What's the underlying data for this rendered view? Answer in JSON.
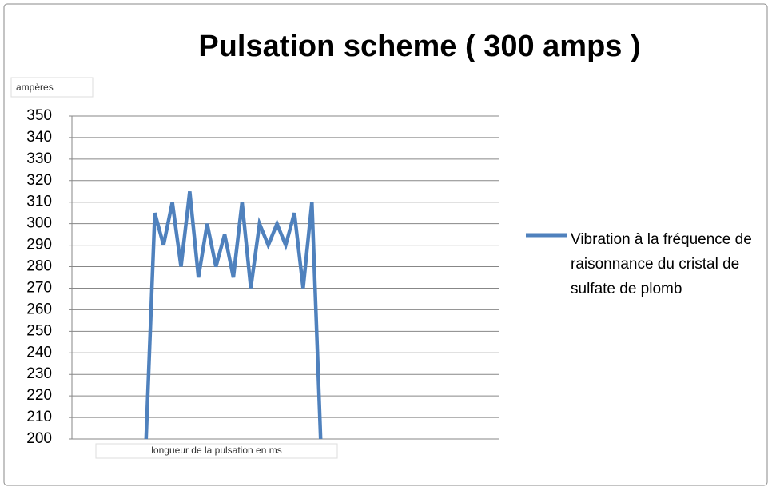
{
  "chart_data": {
    "type": "line",
    "title": "Pulsation scheme ( 300 amps )",
    "y_label": "ampères",
    "x_label": "longueur de la pulsation en ms",
    "categories": [
      null,
      null,
      null,
      null,
      null,
      null,
      null,
      null,
      null,
      null,
      null,
      null,
      null,
      null,
      null,
      null,
      null,
      null,
      null,
      null,
      null,
      null,
      null,
      null,
      null,
      null,
      null,
      null,
      null,
      null,
      null,
      null,
      null,
      null,
      null,
      null,
      null,
      null,
      null,
      null,
      null,
      null,
      null,
      null,
      null,
      null,
      null,
      null,
      null
    ],
    "series": [
      {
        "name": "Vibration à la fréquence de raisonnance du cristal de sulfate de plomb",
        "color": "#4f81bd",
        "values": [
          null,
          null,
          null,
          null,
          null,
          null,
          null,
          null,
          200,
          305,
          290,
          310,
          280,
          315,
          275,
          300,
          280,
          295,
          275,
          310,
          270,
          300,
          290,
          300,
          290,
          305,
          270,
          310,
          200,
          null,
          null,
          null,
          null,
          null,
          null,
          null,
          null,
          null,
          null,
          null,
          null,
          null,
          null,
          null,
          null,
          null,
          null,
          null,
          null
        ]
      }
    ],
    "ylim": [
      200,
      350
    ],
    "yticks": [
      200,
      210,
      220,
      230,
      240,
      250,
      260,
      270,
      280,
      290,
      300,
      310,
      320,
      330,
      340,
      350
    ],
    "grid": true,
    "legend": "right"
  }
}
